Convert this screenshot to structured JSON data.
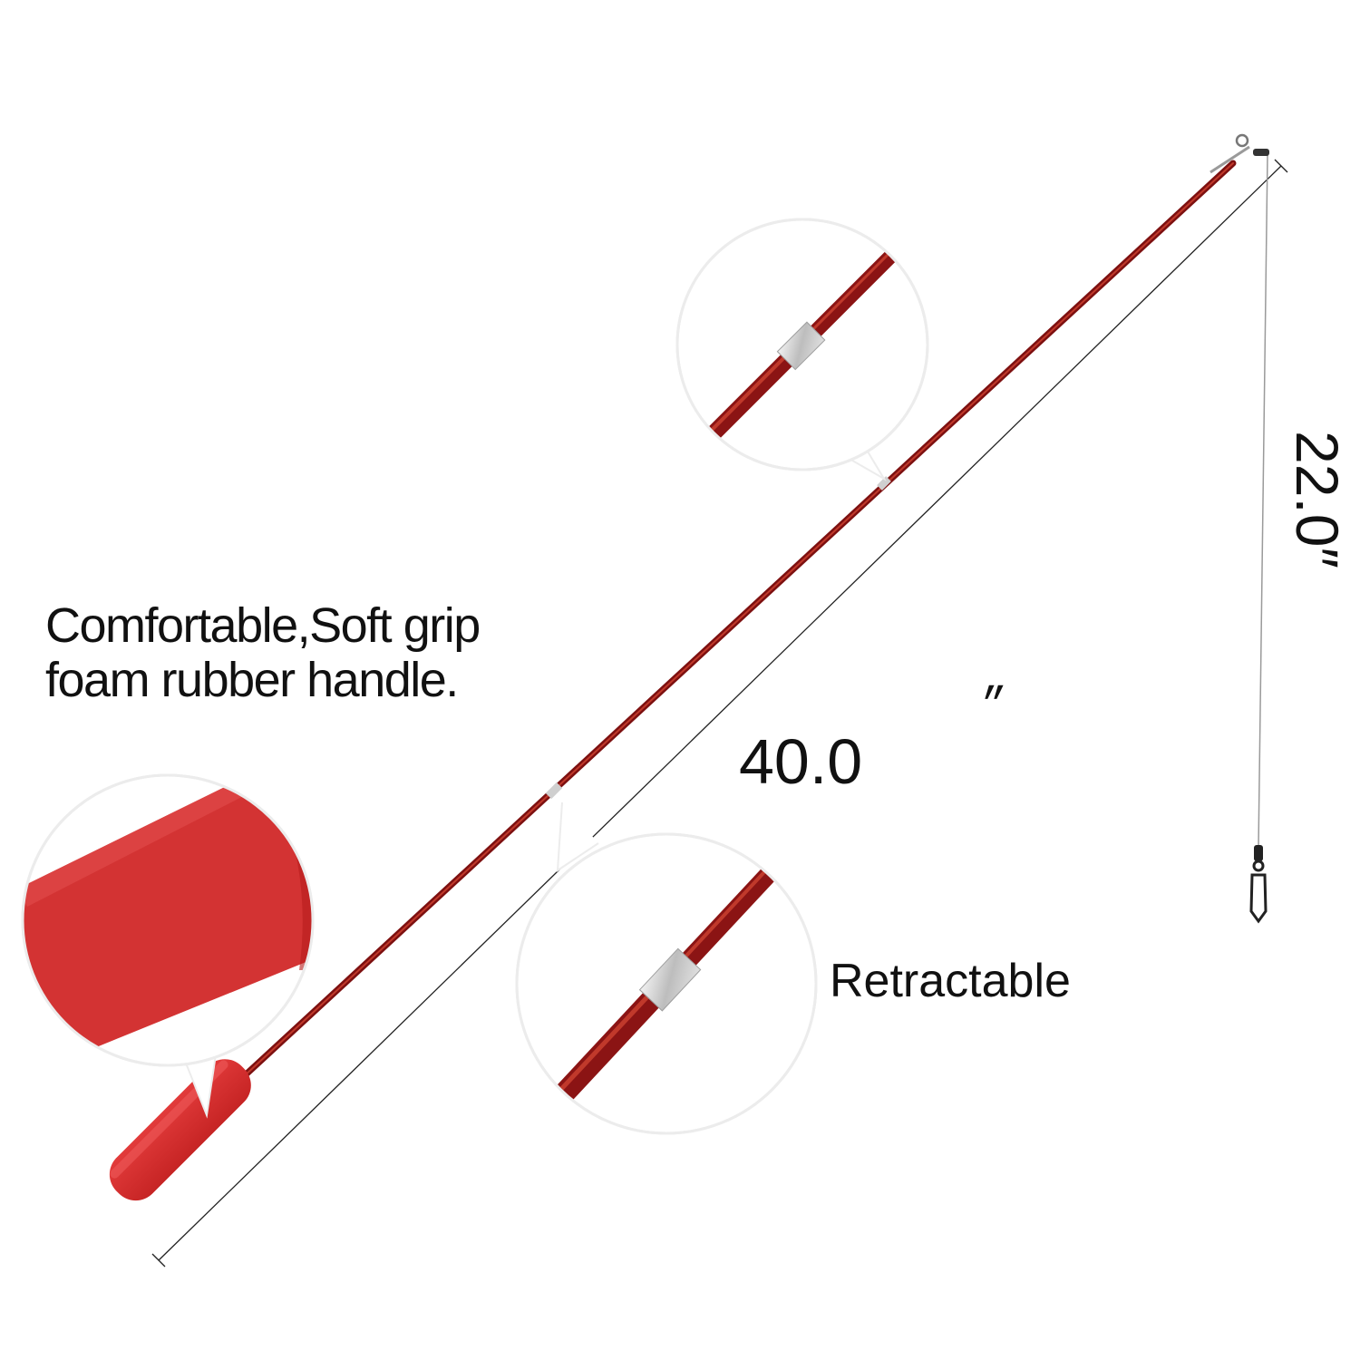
{
  "colors": {
    "rod": "#8b1414",
    "rod_highlight": "#c0392b",
    "grip": "#d32f2f",
    "ferrule": "#c9c9c9",
    "dimension_line": "#222222",
    "bubble_border": "#e6e6e6"
  },
  "labels": {
    "grip_line1": "Comfortable,Soft grip",
    "grip_line2": "foam rubber handle.",
    "retractable": "Retractable",
    "rod_length": "40.0",
    "rod_length_unit": "″",
    "line_length": "22.0″"
  },
  "icons": [
    "fishing-rod-icon",
    "swivel-snap-icon",
    "ferrule-icon"
  ]
}
